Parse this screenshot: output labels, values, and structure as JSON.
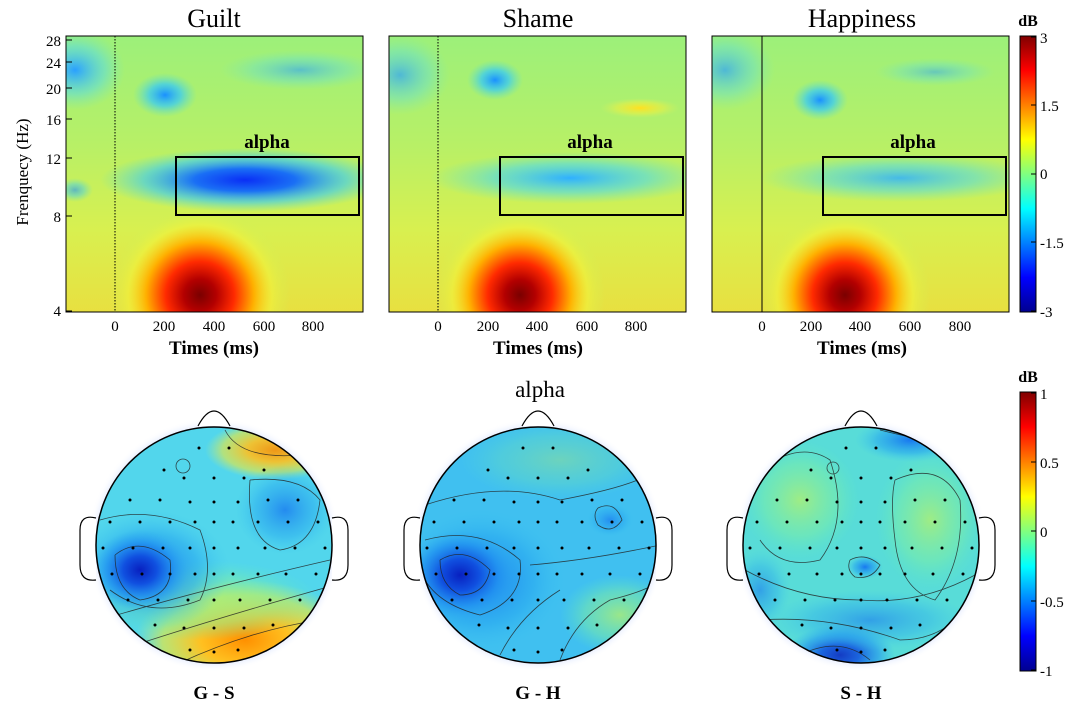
{
  "figure": {
    "panels": [
      {
        "title": "Guilt",
        "box_label": "alpha"
      },
      {
        "title": "Shame",
        "box_label": "alpha"
      },
      {
        "title": "Happiness",
        "box_label": "alpha"
      }
    ],
    "ylabel": "Frenquecy (Hz)",
    "xlabel": "Times (ms)",
    "y_ticks": [
      "28",
      "24",
      "20",
      "16",
      "12",
      "8",
      "4"
    ],
    "x_ticks": [
      "0",
      "200",
      "400",
      "600",
      "800"
    ],
    "colorbar_top": {
      "unit": "dB",
      "ticks": [
        "3",
        "1.5",
        "0",
        "-1.5",
        "-3"
      ]
    },
    "topo_title": "alpha",
    "topo_labels": [
      "G - S",
      "G - H",
      "S - H"
    ],
    "colorbar_bottom": {
      "unit": "dB",
      "ticks": [
        "1",
        "0.5",
        "0",
        "-0.5",
        "-1"
      ]
    }
  },
  "chart_data": [
    {
      "type": "heatmap",
      "title": "Guilt",
      "xlabel": "Times (ms)",
      "ylabel": "Frenquecy (Hz)",
      "xlim": [
        -200,
        1000
      ],
      "ylim": [
        4,
        30
      ],
      "clim": [
        -3,
        3
      ],
      "alpha_box": {
        "x": [
          240,
          980
        ],
        "y": [
          8,
          12
        ]
      },
      "alpha_power_dB": -1.3
    },
    {
      "type": "heatmap",
      "title": "Shame",
      "xlabel": "Times (ms)",
      "ylabel": "Frenquecy (Hz)",
      "xlim": [
        -200,
        1000
      ],
      "ylim": [
        4,
        30
      ],
      "clim": [
        -3,
        3
      ],
      "alpha_box": {
        "x": [
          240,
          980
        ],
        "y": [
          8,
          12
        ]
      },
      "alpha_power_dB": -0.8
    },
    {
      "type": "heatmap",
      "title": "Happiness",
      "xlabel": "Times (ms)",
      "ylabel": "Frenquecy (Hz)",
      "xlim": [
        -200,
        1000
      ],
      "ylim": [
        4,
        30
      ],
      "clim": [
        -3,
        3
      ],
      "alpha_box": {
        "x": [
          240,
          980
        ],
        "y": [
          8,
          12
        ]
      },
      "alpha_power_dB": -0.6
    }
  ]
}
